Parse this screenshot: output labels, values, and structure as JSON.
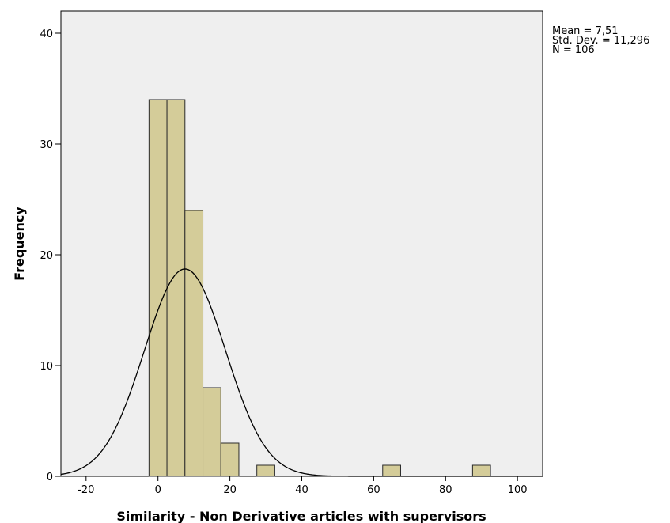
{
  "chart_data": {
    "type": "bar",
    "subtype": "histogram-with-normal-curve",
    "xlabel": "Similarity - Non Derivative articles with supervisors",
    "ylabel": "Frequency",
    "xlim": [
      -27,
      107
    ],
    "ylim": [
      0,
      42
    ],
    "x_ticks": [
      -20,
      0,
      20,
      40,
      60,
      80,
      100
    ],
    "y_ticks": [
      0,
      10,
      20,
      30,
      40
    ],
    "bin_width": 5,
    "bins": [
      {
        "start": -2.5,
        "end": 2.5,
        "count": 34
      },
      {
        "start": 2.5,
        "end": 7.5,
        "count": 34
      },
      {
        "start": 7.5,
        "end": 12.5,
        "count": 24
      },
      {
        "start": 12.5,
        "end": 17.5,
        "count": 8
      },
      {
        "start": 17.5,
        "end": 22.5,
        "count": 3
      },
      {
        "start": 27.5,
        "end": 32.5,
        "count": 1
      },
      {
        "start": 62.5,
        "end": 67.5,
        "count": 1
      },
      {
        "start": 87.5,
        "end": 92.5,
        "count": 1
      }
    ],
    "normal_curve": {
      "mean": 7.51,
      "std_dev": 11.296,
      "n": 106
    },
    "stats_text": [
      "Mean = 7,51",
      "Std. Dev. = 11,296",
      "N = 106"
    ],
    "grid": false,
    "colors": {
      "bar_fill": "#d4cc99",
      "bar_stroke": "#2b2b2b",
      "plot_background": "#efefef",
      "curve": "#000000"
    }
  }
}
